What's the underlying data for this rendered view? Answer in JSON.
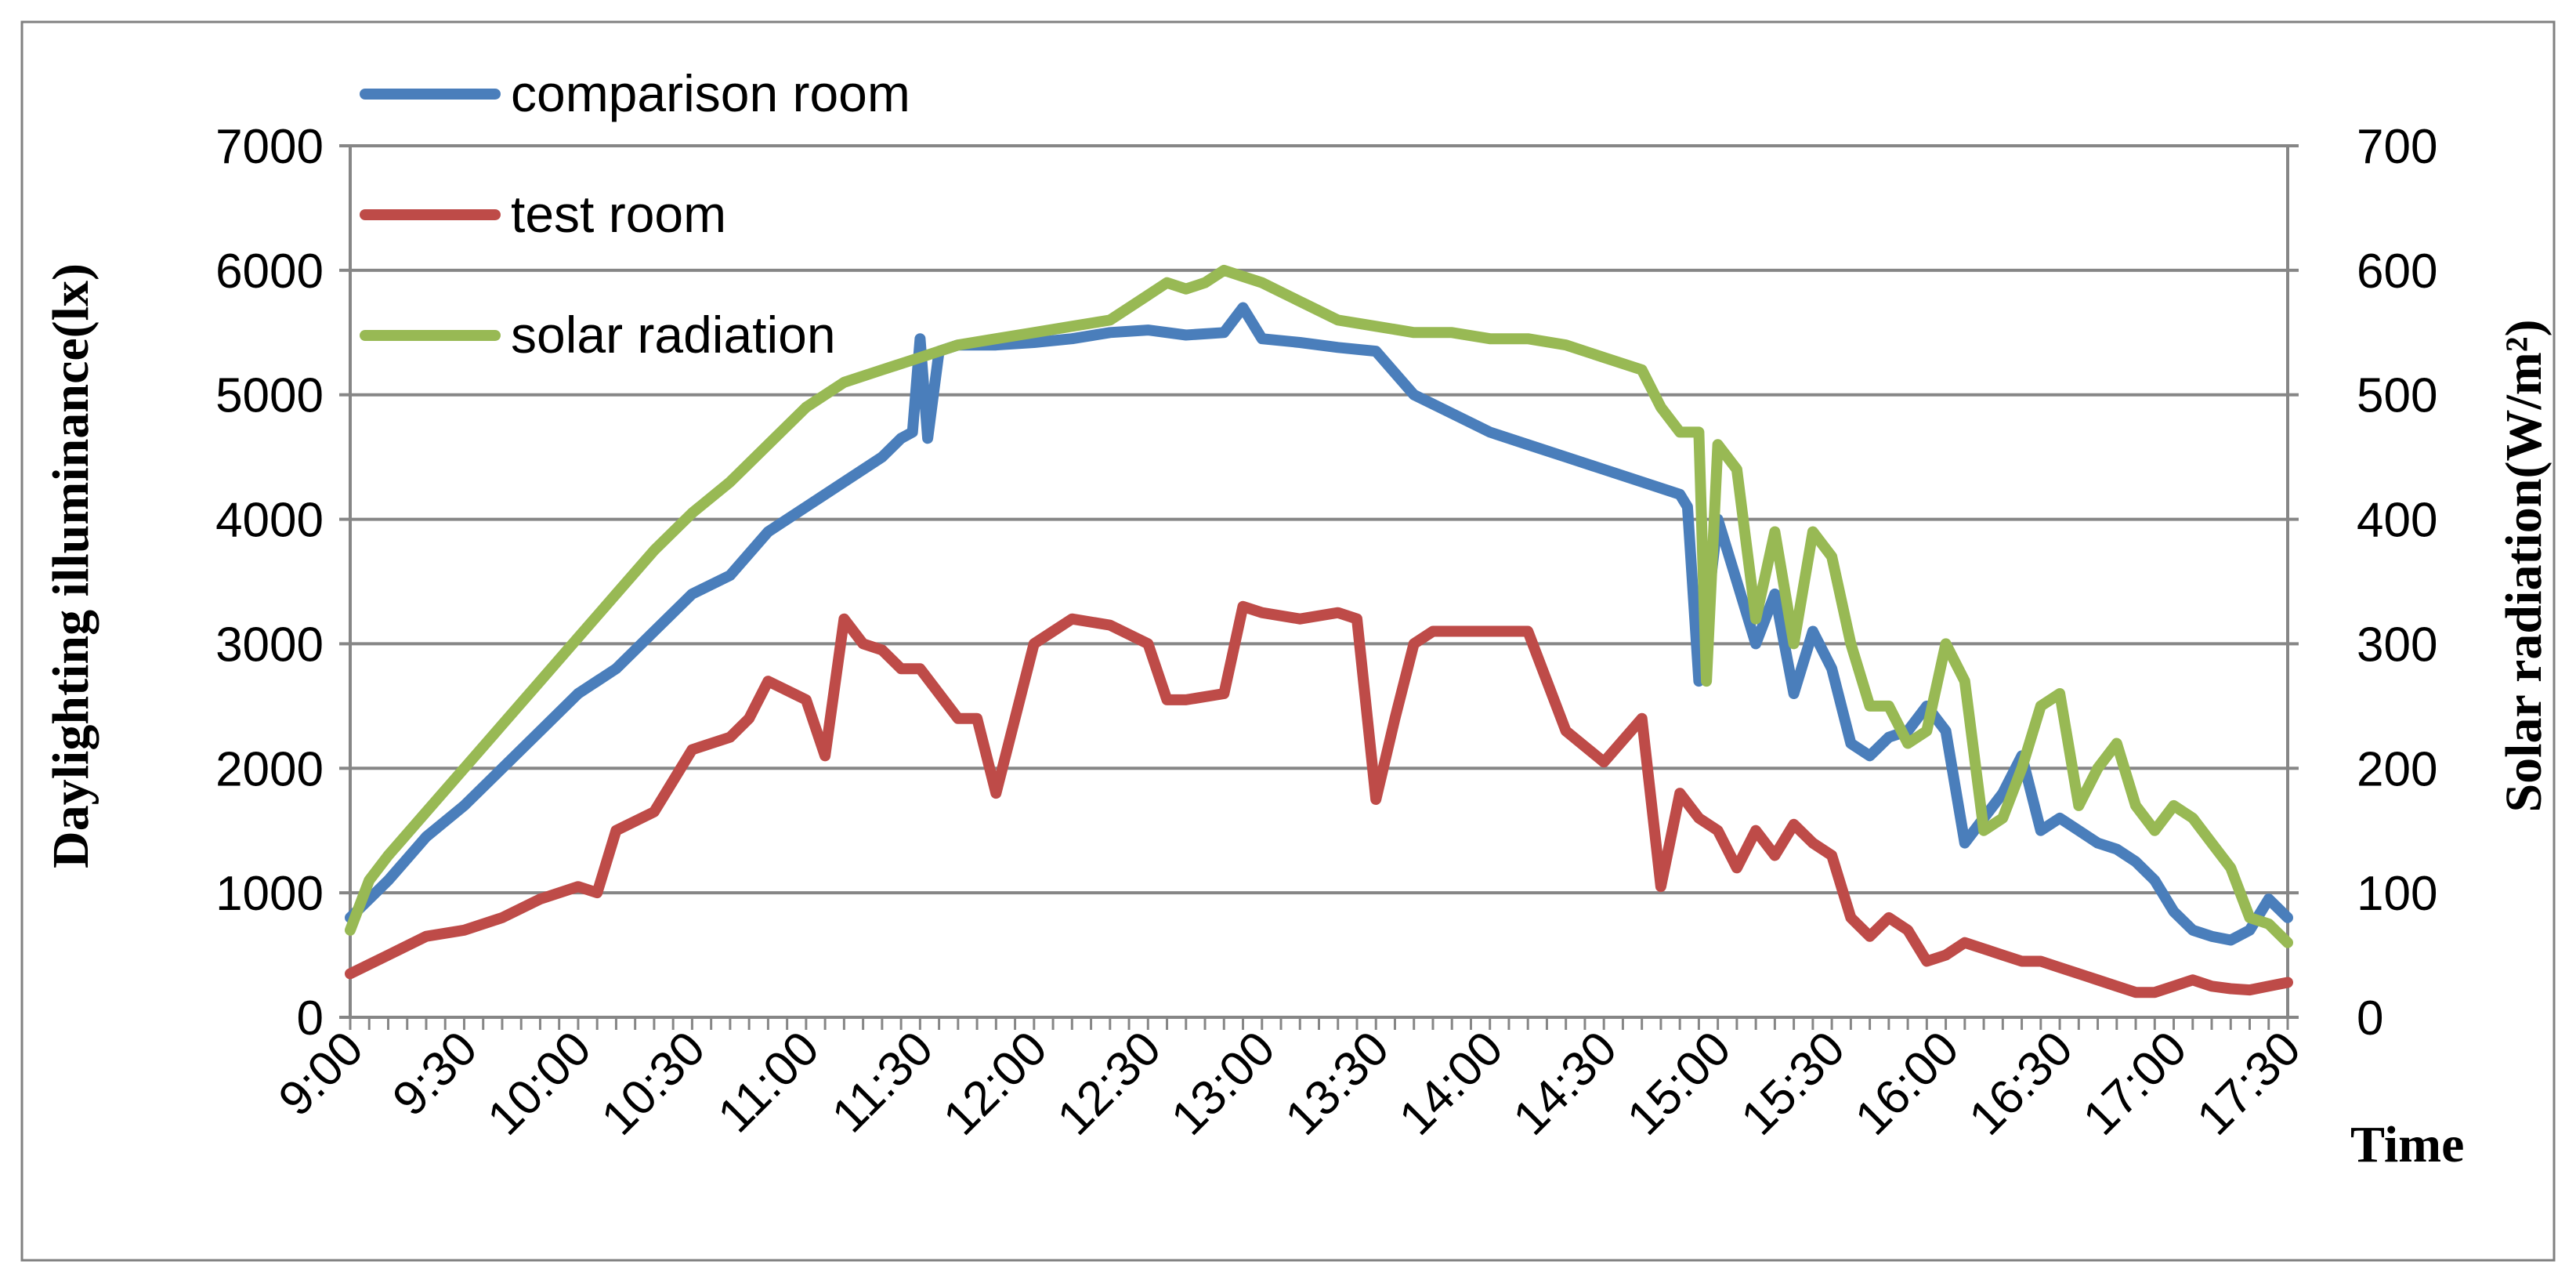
{
  "chart_data": {
    "type": "line",
    "xlabel": "Time",
    "ylabel": "Daylighting illuminance(lx)",
    "ylabel_right": "Solar radiation(W/m²)",
    "x_ticks": [
      "9:00",
      "9:30",
      "10:00",
      "10:30",
      "11:00",
      "11:30",
      "12:00",
      "12:30",
      "13:00",
      "13:30",
      "14:00",
      "14:30",
      "15:00",
      "15:30",
      "16:00",
      "16:30",
      "17:00",
      "17:30"
    ],
    "y_ticks": [
      "0",
      "1000",
      "2000",
      "3000",
      "4000",
      "5000",
      "6000",
      "7000"
    ],
    "y2_ticks": [
      "0",
      "100",
      "200",
      "300",
      "400",
      "500",
      "600",
      "700"
    ],
    "ylim": [
      0,
      7000
    ],
    "y2lim": [
      0,
      700
    ],
    "grid": true,
    "legend_position": "top-left",
    "colors": {
      "comparison": "#4a7ebb",
      "test": "#be4b48",
      "solar": "#98b954"
    },
    "series": [
      {
        "name": "comparison room",
        "axis": "left",
        "x": [
          "9:00",
          "9:10",
          "9:20",
          "9:30",
          "9:40",
          "9:50",
          "10:00",
          "10:10",
          "10:20",
          "10:30",
          "10:40",
          "10:50",
          "11:00",
          "11:10",
          "11:20",
          "11:25",
          "11:28",
          "11:30",
          "11:32",
          "11:35",
          "11:40",
          "11:50",
          "12:00",
          "12:10",
          "12:20",
          "12:30",
          "12:40",
          "12:50",
          "12:55",
          "13:00",
          "13:10",
          "13:20",
          "13:30",
          "13:40",
          "13:50",
          "14:00",
          "14:10",
          "14:20",
          "14:30",
          "14:40",
          "14:50",
          "14:52",
          "14:55",
          "15:00",
          "15:05",
          "15:10",
          "15:15",
          "15:20",
          "15:25",
          "15:30",
          "15:35",
          "15:40",
          "15:45",
          "15:50",
          "15:55",
          "16:00",
          "16:05",
          "16:10",
          "16:15",
          "16:20",
          "16:25",
          "16:30",
          "16:35",
          "16:40",
          "16:45",
          "16:50",
          "16:55",
          "17:00",
          "17:05",
          "17:10",
          "17:15",
          "17:20",
          "17:25",
          "17:30"
        ],
        "values": [
          800,
          1100,
          1450,
          1700,
          2000,
          2300,
          2600,
          2800,
          3100,
          3400,
          3550,
          3900,
          4100,
          4300,
          4500,
          4650,
          4700,
          5450,
          4650,
          5350,
          5400,
          5400,
          5420,
          5450,
          5500,
          5520,
          5480,
          5500,
          5700,
          5450,
          5420,
          5380,
          5350,
          5000,
          4850,
          4700,
          4600,
          4500,
          4400,
          4300,
          4200,
          4100,
          2700,
          4000,
          3500,
          3000,
          3400,
          2600,
          3100,
          2800,
          2200,
          2100,
          2250,
          2300,
          2500,
          2300,
          1400,
          1600,
          1800,
          2100,
          1500,
          1600,
          1500,
          1400,
          1350,
          1250,
          1100,
          850,
          700,
          650,
          620,
          700,
          950,
          800
        ]
      },
      {
        "name": "test room",
        "axis": "left",
        "x": [
          "9:00",
          "9:10",
          "9:20",
          "9:30",
          "9:40",
          "9:50",
          "10:00",
          "10:05",
          "10:10",
          "10:20",
          "10:30",
          "10:40",
          "10:45",
          "10:50",
          "11:00",
          "11:05",
          "11:10",
          "11:15",
          "11:20",
          "11:25",
          "11:30",
          "11:40",
          "11:45",
          "11:50",
          "12:00",
          "12:05",
          "12:10",
          "12:20",
          "12:30",
          "12:35",
          "12:40",
          "12:50",
          "12:55",
          "13:00",
          "13:10",
          "13:20",
          "13:25",
          "13:30",
          "13:35",
          "13:40",
          "13:45",
          "13:50",
          "14:00",
          "14:10",
          "14:20",
          "14:30",
          "14:40",
          "14:45",
          "14:50",
          "14:55",
          "15:00",
          "15:05",
          "15:10",
          "15:15",
          "15:20",
          "15:25",
          "15:30",
          "15:35",
          "15:40",
          "15:45",
          "15:50",
          "15:55",
          "16:00",
          "16:05",
          "16:10",
          "16:15",
          "16:20",
          "16:25",
          "16:30",
          "16:35",
          "16:40",
          "16:45",
          "16:50",
          "16:55",
          "17:00",
          "17:05",
          "17:10",
          "17:15",
          "17:20",
          "17:25",
          "17:30"
        ],
        "values": [
          350,
          500,
          650,
          700,
          800,
          950,
          1050,
          1000,
          1500,
          1650,
          2150,
          2250,
          2400,
          2700,
          2550,
          2100,
          3200,
          3000,
          2950,
          2800,
          2800,
          2400,
          2400,
          1800,
          3000,
          3100,
          3200,
          3150,
          3000,
          2550,
          2550,
          2600,
          3300,
          3250,
          3200,
          3250,
          3200,
          1750,
          2400,
          3000,
          3100,
          3100,
          3100,
          3100,
          2300,
          2050,
          2400,
          1050,
          1800,
          1600,
          1500,
          1200,
          1500,
          1300,
          1550,
          1400,
          1300,
          800,
          650,
          800,
          700,
          450,
          500,
          600,
          550,
          500,
          450,
          450,
          400,
          350,
          300,
          250,
          200,
          200,
          250,
          300,
          250,
          230,
          220,
          250,
          280
        ]
      },
      {
        "name": "solar radiation",
        "axis": "right",
        "x": [
          "9:00",
          "9:05",
          "9:10",
          "9:20",
          "9:30",
          "9:40",
          "9:50",
          "10:00",
          "10:10",
          "10:20",
          "10:30",
          "10:40",
          "10:50",
          "11:00",
          "11:10",
          "11:20",
          "11:30",
          "11:40",
          "11:50",
          "12:00",
          "12:10",
          "12:20",
          "12:30",
          "12:35",
          "12:40",
          "12:45",
          "12:50",
          "12:55",
          "13:00",
          "13:10",
          "13:20",
          "13:30",
          "13:40",
          "13:50",
          "14:00",
          "14:10",
          "14:20",
          "14:30",
          "14:40",
          "14:45",
          "14:50",
          "14:55",
          "14:57",
          "15:00",
          "15:05",
          "15:10",
          "15:15",
          "15:20",
          "15:25",
          "15:30",
          "15:35",
          "15:40",
          "15:45",
          "15:50",
          "15:55",
          "16:00",
          "16:05",
          "16:10",
          "16:15",
          "16:20",
          "16:25",
          "16:30",
          "16:35",
          "16:40",
          "16:45",
          "16:50",
          "16:55",
          "17:00",
          "17:05",
          "17:10",
          "17:15",
          "17:20",
          "17:25",
          "17:30"
        ],
        "values": [
          70,
          110,
          130,
          165,
          200,
          235,
          270,
          305,
          340,
          375,
          405,
          430,
          460,
          490,
          510,
          520,
          530,
          540,
          545,
          550,
          555,
          560,
          580,
          590,
          585,
          590,
          600,
          595,
          590,
          575,
          560,
          555,
          550,
          550,
          545,
          545,
          540,
          530,
          520,
          490,
          470,
          470,
          270,
          460,
          440,
          320,
          390,
          300,
          390,
          370,
          300,
          250,
          250,
          220,
          230,
          300,
          270,
          150,
          160,
          200,
          250,
          260,
          170,
          200,
          220,
          170,
          150,
          170,
          160,
          140,
          120,
          80,
          75,
          60
        ]
      }
    ]
  },
  "legend": {
    "items": [
      "comparison room",
      "test room",
      "solar radiation"
    ]
  }
}
